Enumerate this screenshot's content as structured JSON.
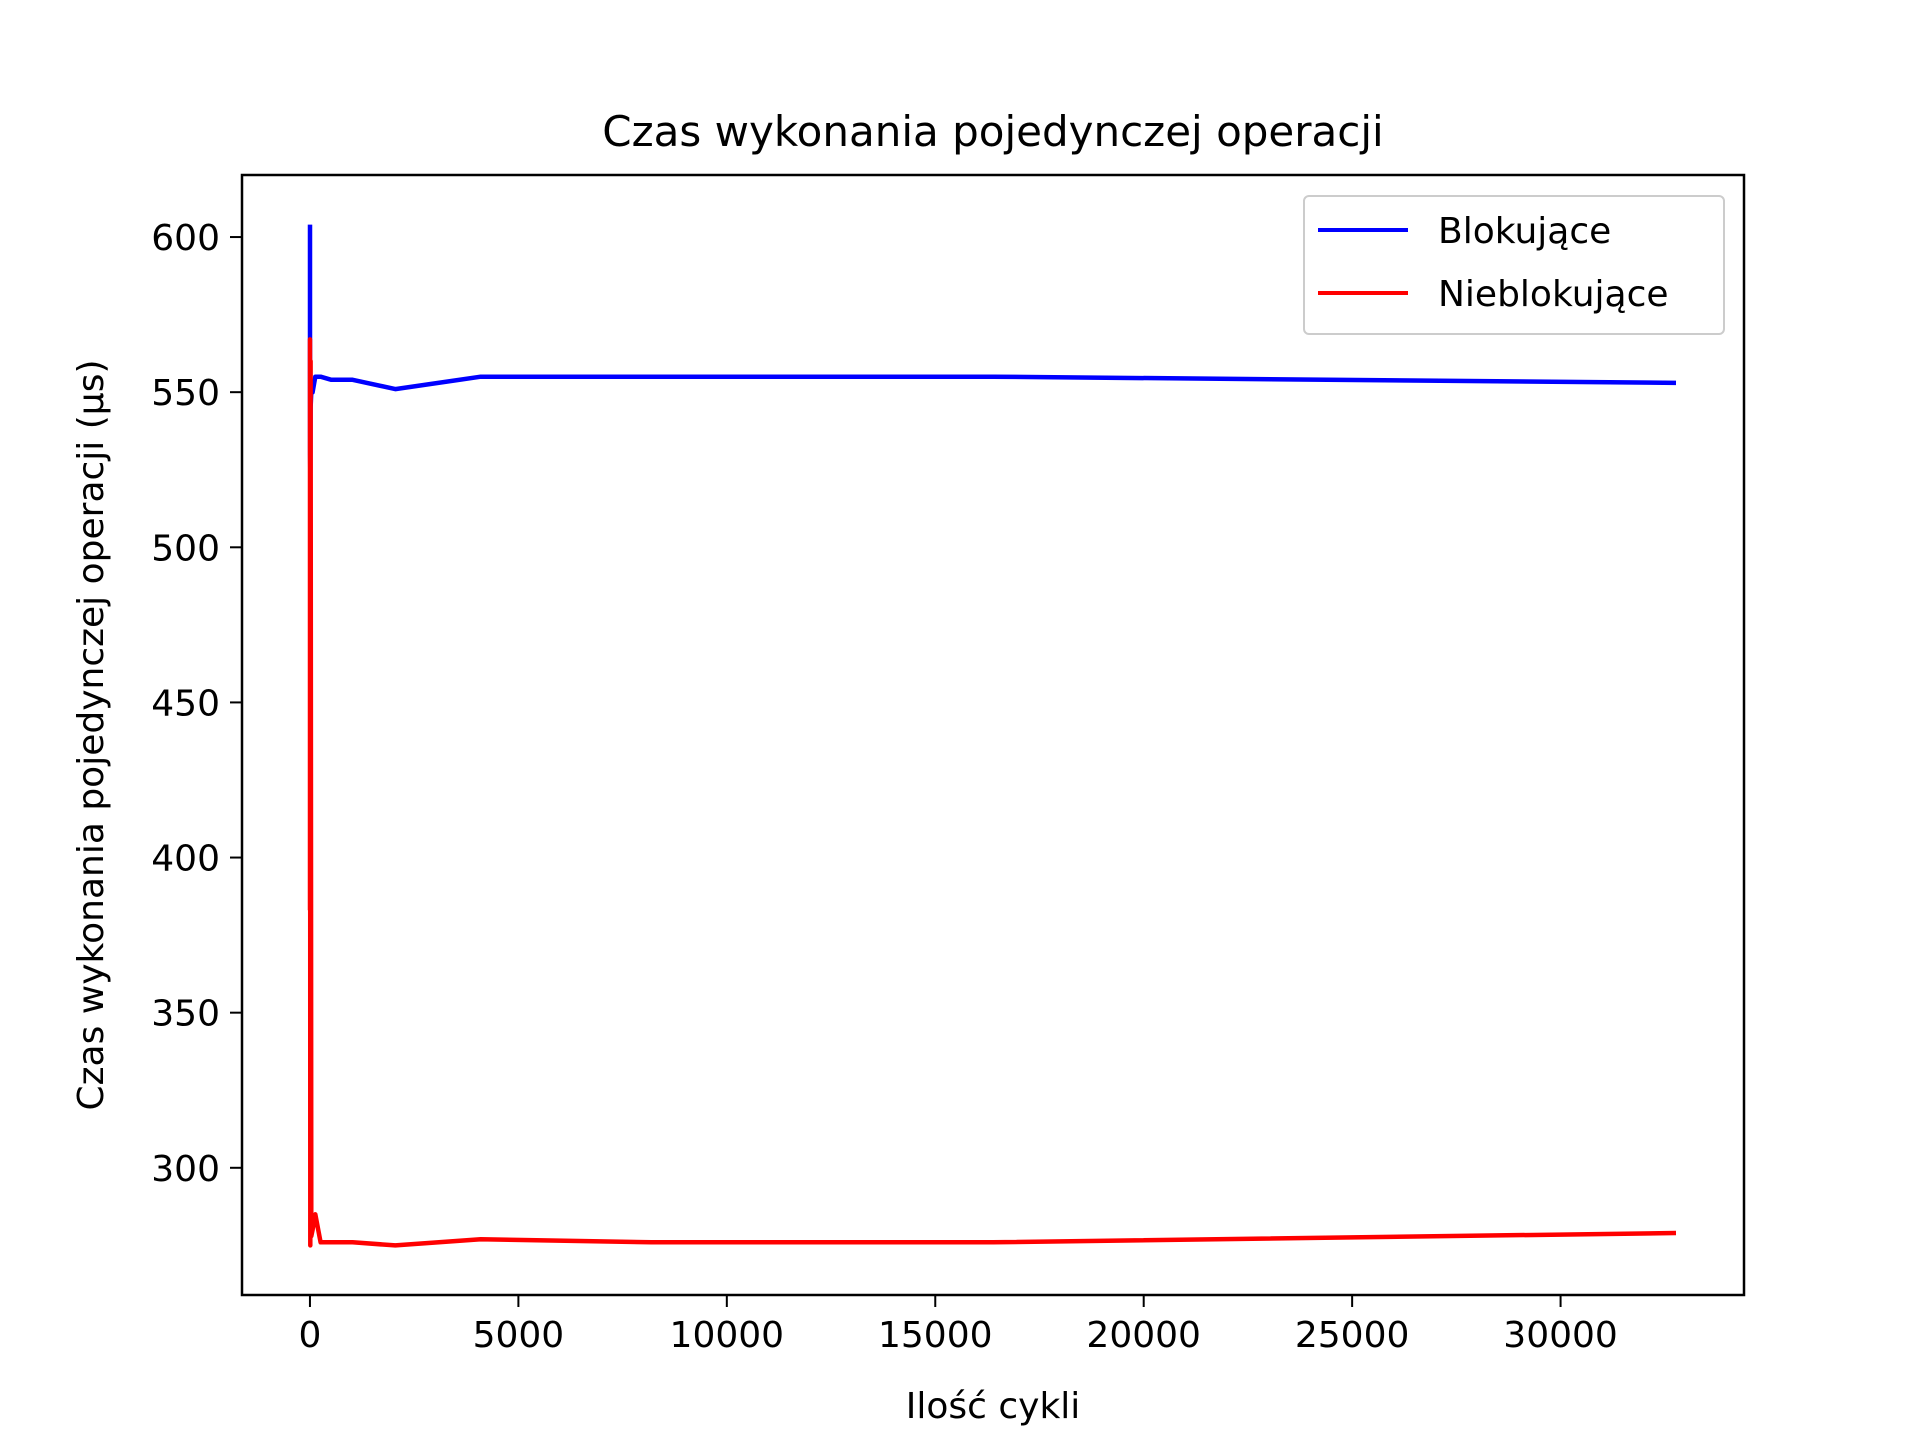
{
  "chart_data": {
    "type": "line",
    "title": "Czas wykonania pojedynczej operacji",
    "xlabel": "Ilość cykli",
    "ylabel": "Czas wykonania pojedynczej operacji (µs)",
    "xlim": [
      -1630,
      34400
    ],
    "ylim": [
      259,
      620
    ],
    "xticks": [
      0,
      5000,
      10000,
      15000,
      20000,
      25000,
      30000
    ],
    "xtick_labels": [
      "0",
      "5000",
      "10000",
      "15000",
      "20000",
      "25000",
      "30000"
    ],
    "yticks": [
      300,
      350,
      400,
      450,
      500,
      550,
      600
    ],
    "ytick_labels": [
      "300",
      "350",
      "400",
      "450",
      "500",
      "550",
      "600"
    ],
    "grid": false,
    "legend_position": "top-right",
    "series": [
      {
        "name": "Blokujące",
        "color": "#0000ff",
        "x": [
          1,
          2,
          4,
          8,
          16,
          32,
          64,
          128,
          256,
          512,
          1024,
          2048,
          4096,
          8192,
          16384,
          32768
        ],
        "y": [
          604,
          560,
          530,
          524,
          545,
          550,
          550,
          555,
          555,
          554,
          554,
          551,
          555,
          555,
          555,
          553
        ]
      },
      {
        "name": "Nieblokujące",
        "color": "#ff0000",
        "x": [
          1,
          2,
          4,
          8,
          16,
          32,
          64,
          128,
          256,
          512,
          1024,
          2048,
          4096,
          8192,
          16384,
          32768
        ],
        "y": [
          383,
          567,
          525,
          275,
          560,
          278,
          280,
          285,
          276,
          276,
          276,
          275,
          277,
          276,
          276,
          279
        ]
      }
    ]
  }
}
